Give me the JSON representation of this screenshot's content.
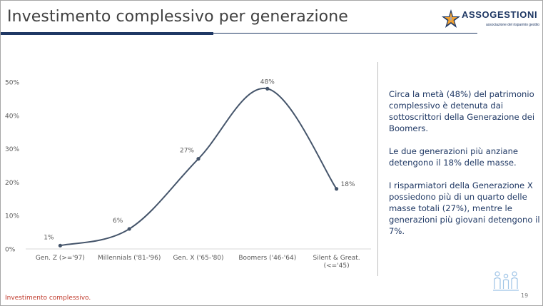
{
  "header": {
    "title": "Investimento complessivo per generazione",
    "logo_name": "ASSOGESTIONI",
    "logo_tagline": "associazione del risparmio gestito"
  },
  "chart_data": {
    "type": "line",
    "categories": [
      "Gen. Z (>='97)",
      "Millennials ('81-'96)",
      "Gen. X ('65-'80)",
      "Boomers ('46-'64)",
      "Silent & Great. (<='45)"
    ],
    "category_lines": [
      [
        "Gen. Z (>='97)"
      ],
      [
        "Millennials ('81-'96)"
      ],
      [
        "Gen. X ('65-'80)"
      ],
      [
        "Boomers ('46-'64)"
      ],
      [
        "Silent & Great.",
        "(<='45)"
      ]
    ],
    "values": [
      1,
      6,
      27,
      48,
      18
    ],
    "data_labels": [
      "1%",
      "6%",
      "27%",
      "48%",
      "18%"
    ],
    "yticks": [
      0,
      10,
      20,
      30,
      40,
      50
    ],
    "ytick_labels": [
      "0%",
      "10%",
      "20%",
      "30%",
      "40%",
      "50%"
    ],
    "ylim": [
      0,
      50
    ],
    "grid": false,
    "line_color": "#44546a",
    "title": "",
    "xlabel": "",
    "ylabel": ""
  },
  "notes": [
    "Circa la metà (48%) del patrimonio complessivo è detenuta dai sottoscrittori della Generazione dei Boomers.",
    "Le due generazioni più anziane detengono il 18% delle masse.",
    "I risparmiatori della Generazione X possiedono più di un quarto delle masse totali (27%), mentre le generazioni più giovani detengono il 7%."
  ],
  "footer": {
    "source": "Investimento complessivo.",
    "page_number": "19"
  },
  "icons": {
    "logo_mark": "star-logo-icon",
    "people": "people-group-icon"
  }
}
